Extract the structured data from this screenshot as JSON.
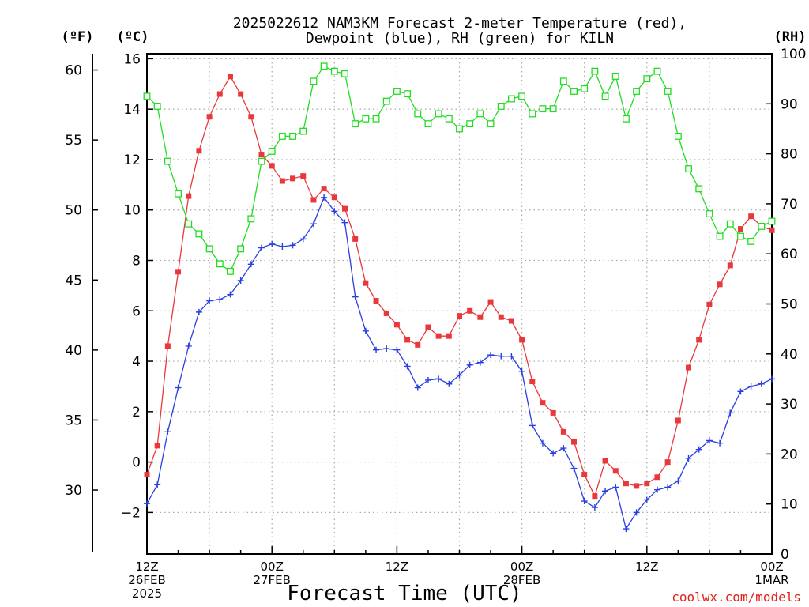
{
  "chart_data": {
    "type": "line",
    "title_line1": "2025022612 NAM3KM Forecast 2-meter Temperature (red),",
    "title_line2": "Dewpoint (blue), RH (green) for KILN",
    "units": {
      "fahrenheit": "(ºF)",
      "celsius": "(ºC)",
      "rh": "(RH)"
    },
    "xlabel": "Forecast Time (UTC)",
    "credit": "coolwx.com/models",
    "x_range_hours": [
      0,
      60
    ],
    "x_ticks": [
      {
        "h": 0,
        "l1": "12Z",
        "l2": "26FEB",
        "l3": "2025"
      },
      {
        "h": 12,
        "l1": "00Z",
        "l2": "27FEB",
        "l3": ""
      },
      {
        "h": 24,
        "l1": "12Z",
        "l2": "",
        "l3": ""
      },
      {
        "h": 36,
        "l1": "00Z",
        "l2": "28FEB",
        "l3": ""
      },
      {
        "h": 48,
        "l1": "12Z",
        "l2": "",
        "l3": ""
      },
      {
        "h": 60,
        "l1": "00Z",
        "l2": "1MAR",
        "l3": ""
      }
    ],
    "celsius_axis": {
      "range": [
        -3.65,
        16.2
      ],
      "ticks": [
        -2,
        0,
        2,
        4,
        6,
        8,
        10,
        12,
        14,
        16
      ]
    },
    "fahrenheit_ticks": [
      30,
      35,
      40,
      45,
      50,
      55,
      60
    ],
    "rh_axis": {
      "range": [
        0,
        100
      ],
      "ticks": [
        0,
        10,
        20,
        30,
        40,
        50,
        60,
        70,
        80,
        90,
        100
      ]
    },
    "series": [
      {
        "name": "Temperature",
        "color": "#e8383c",
        "marker": "filled-square",
        "values": [
          -0.5,
          0.65,
          4.6,
          7.55,
          10.55,
          12.35,
          13.7,
          14.6,
          15.3,
          14.6,
          13.7,
          12.2,
          11.75,
          11.15,
          11.25,
          11.35,
          10.4,
          10.85,
          10.5,
          10.05,
          8.85,
          7.1,
          6.4,
          5.9,
          5.45,
          4.85,
          4.65,
          5.35,
          5.0,
          5.0,
          5.8,
          6.0,
          5.75,
          6.35,
          5.75,
          5.6,
          4.85,
          3.2,
          2.35,
          1.95,
          1.2,
          0.8,
          -0.5,
          -1.35,
          0.05,
          -0.35,
          -0.85,
          -0.95,
          -0.85,
          -0.6,
          0.0,
          1.65,
          3.75,
          4.85,
          6.25,
          7.05,
          7.8,
          9.25,
          9.75,
          9.35,
          9.2
        ]
      },
      {
        "name": "Dewpoint",
        "color": "#2a3fe0",
        "marker": "plus",
        "values": [
          -1.65,
          -0.9,
          1.2,
          2.95,
          4.6,
          5.95,
          6.4,
          6.45,
          6.65,
          7.2,
          7.85,
          8.5,
          8.65,
          8.55,
          8.6,
          8.85,
          9.45,
          10.5,
          9.95,
          9.5,
          6.55,
          5.2,
          4.45,
          4.5,
          4.45,
          3.8,
          2.95,
          3.25,
          3.3,
          3.1,
          3.45,
          3.85,
          3.95,
          4.25,
          4.2,
          4.2,
          3.6,
          1.45,
          0.75,
          0.35,
          0.55,
          -0.25,
          -1.55,
          -1.8,
          -1.15,
          -1.0,
          -2.65,
          -2.0,
          -1.5,
          -1.1,
          -1.0,
          -0.75,
          0.15,
          0.5,
          0.85,
          0.75,
          1.95,
          2.8,
          3.0,
          3.1,
          3.3
        ]
      },
      {
        "name": "RH",
        "color": "#22dd22",
        "marker": "open-square",
        "values": [
          91.5,
          89.5,
          78.5,
          72,
          66,
          64,
          61,
          58,
          56.5,
          61,
          67,
          78.5,
          80.5,
          83.5,
          83.5,
          84.5,
          94.5,
          97.5,
          96.5,
          96,
          86,
          87,
          87,
          90.5,
          92.5,
          92,
          88,
          86,
          88,
          87,
          85,
          86,
          88,
          86,
          89.5,
          91,
          91.5,
          88,
          89,
          89,
          94.5,
          92.5,
          93,
          96.5,
          91.5,
          95.5,
          87,
          92.5,
          95,
          96.5,
          92.5,
          83.5,
          77,
          73,
          68,
          63.5,
          66,
          63.5,
          62.5,
          65.5,
          66.5
        ]
      }
    ]
  }
}
